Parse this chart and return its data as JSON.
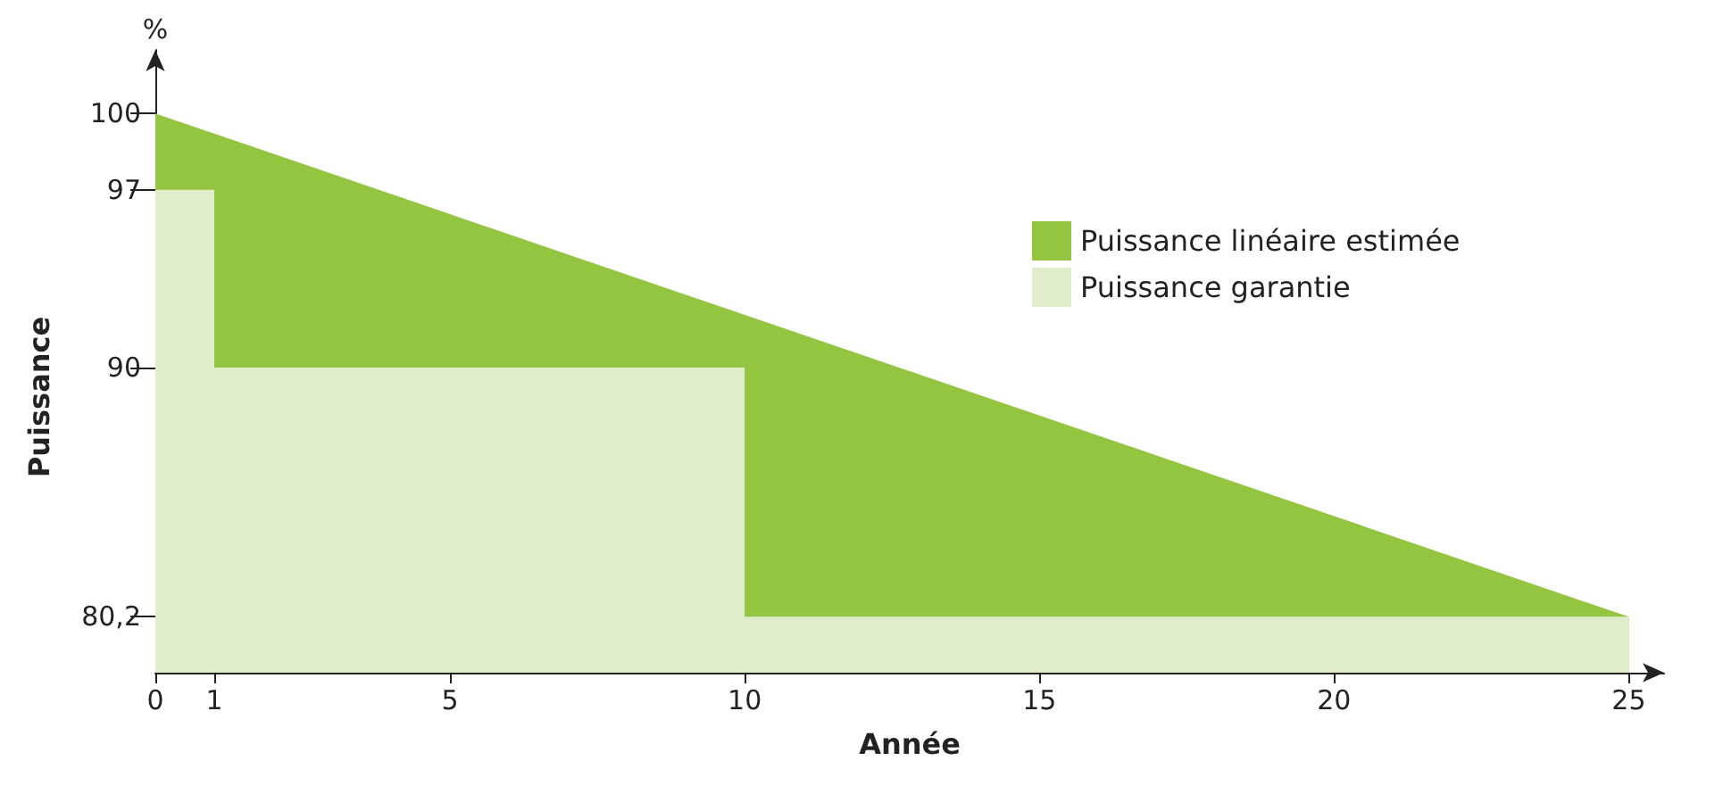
{
  "chart_data": {
    "type": "area",
    "xlabel": "Année",
    "ylabel": "Puissance",
    "annotations": [
      "%"
    ],
    "xlim": [
      0,
      25.6
    ],
    "xticks": [
      0,
      1,
      5,
      10,
      15,
      20,
      25
    ],
    "ylim": [
      78,
      102.5
    ],
    "yticks": [
      {
        "value": 80.2,
        "label": "80,2"
      },
      90,
      97,
      100
    ],
    "series": [
      {
        "name": "Puissance linéaire estimée",
        "color": "#93c540",
        "x": [
          0,
          25
        ],
        "values": [
          100,
          80.2
        ]
      },
      {
        "name": "Puissance garantie",
        "color": "#e0edca",
        "x": [
          0,
          1,
          1,
          10,
          10,
          25
        ],
        "values": [
          97,
          97,
          90,
          90,
          80.2,
          80.2
        ]
      }
    ],
    "legend": "top right",
    "grid": false
  }
}
